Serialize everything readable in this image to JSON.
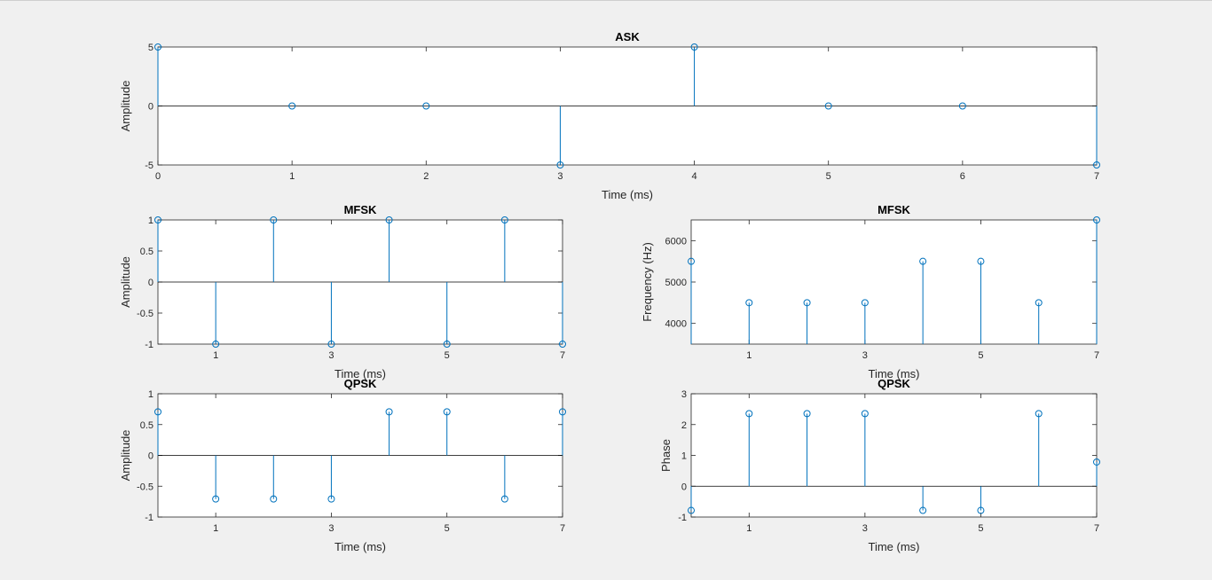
{
  "figure": {
    "background": "#f0f0f0",
    "stem_color": "#0072bd"
  },
  "chart_data": [
    {
      "id": "ask",
      "type": "stem",
      "title": "ASK",
      "xlabel": "Time (ms)",
      "ylabel": "Amplitude",
      "xlim": [
        0,
        7
      ],
      "ylim": [
        -5,
        5
      ],
      "xticks": [
        0,
        1,
        2,
        3,
        4,
        5,
        6,
        7
      ],
      "yticks": [
        -5,
        0,
        5
      ],
      "baseline": 0,
      "x": [
        0,
        1,
        2,
        3,
        4,
        5,
        6,
        7
      ],
      "y": [
        5,
        0,
        0,
        -5,
        5,
        0,
        0,
        -5
      ],
      "grid": false
    },
    {
      "id": "mfsk-amp",
      "type": "stem",
      "title": "MFSK",
      "xlabel": "Time (ms)",
      "ylabel": "Amplitude",
      "xlim": [
        0,
        7
      ],
      "ylim": [
        -1,
        1
      ],
      "xticks": [
        1,
        3,
        5,
        7
      ],
      "yticks": [
        -1,
        -0.5,
        0,
        0.5,
        1
      ],
      "baseline": 0,
      "x": [
        0,
        1,
        2,
        3,
        4,
        5,
        6,
        7
      ],
      "y": [
        1,
        -1,
        1,
        -1,
        1,
        -1,
        1,
        -1
      ],
      "grid": false
    },
    {
      "id": "mfsk-freq",
      "type": "stem",
      "title": "MFSK",
      "xlabel": "Time (ms)",
      "ylabel": "Frequency (Hz)",
      "xlim": [
        0,
        7
      ],
      "ylim": [
        3500,
        6500
      ],
      "xticks": [
        1,
        3,
        5,
        7
      ],
      "yticks": [
        4000,
        5000,
        6000
      ],
      "baseline": 3500,
      "x": [
        0,
        1,
        2,
        3,
        4,
        5,
        6,
        7
      ],
      "y": [
        5500,
        4500,
        4500,
        4500,
        5500,
        5500,
        4500,
        6500
      ],
      "grid": false
    },
    {
      "id": "qpsk-amp",
      "type": "stem",
      "title": "QPSK",
      "xlabel": "Time (ms)",
      "ylabel": "Amplitude",
      "xlim": [
        0,
        7
      ],
      "ylim": [
        -1,
        1
      ],
      "xticks": [
        1,
        3,
        5,
        7
      ],
      "yticks": [
        -1,
        -0.5,
        0,
        0.5,
        1
      ],
      "baseline": 0,
      "x": [
        0,
        1,
        2,
        3,
        4,
        5,
        6,
        7
      ],
      "y": [
        0.707,
        -0.707,
        -0.707,
        -0.707,
        0.707,
        0.707,
        -0.707,
        0.707
      ],
      "grid": false
    },
    {
      "id": "qpsk-phase",
      "type": "stem",
      "title": "QPSK",
      "xlabel": "Time (ms)",
      "ylabel": "Phase",
      "xlim": [
        0,
        7
      ],
      "ylim": [
        -1,
        3
      ],
      "xticks": [
        1,
        3,
        5,
        7
      ],
      "yticks": [
        -1,
        0,
        1,
        2,
        3
      ],
      "baseline": 0,
      "x": [
        0,
        1,
        2,
        3,
        4,
        5,
        6,
        7
      ],
      "y": [
        -0.785,
        2.356,
        2.356,
        2.356,
        -0.785,
        -0.785,
        2.356,
        0.785
      ],
      "grid": false
    }
  ]
}
